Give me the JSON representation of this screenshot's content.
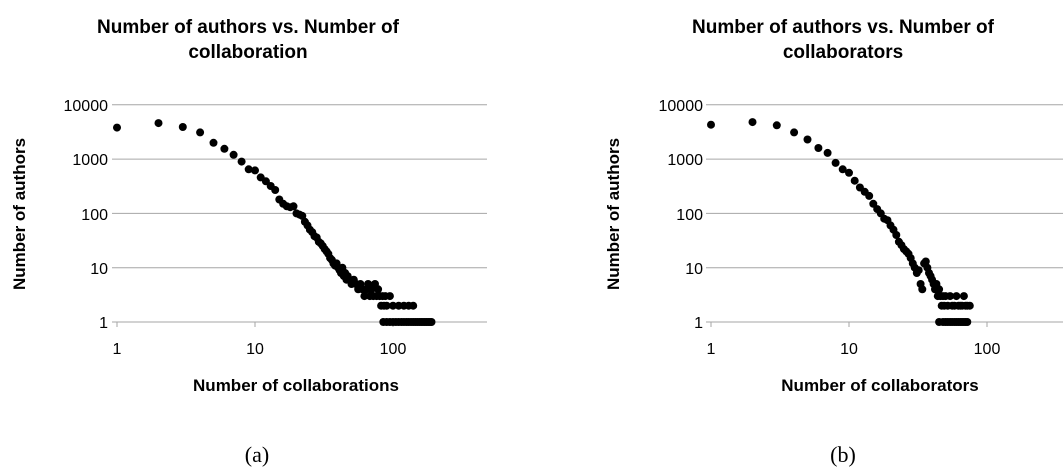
{
  "chart_data": [
    {
      "type": "scatter",
      "title_lines": [
        "Number of authors vs. Number of",
        "collaboration"
      ],
      "xlabel": "Number of collaborations",
      "ylabel": "Number of authors",
      "caption": "(a)",
      "x_scale": "log",
      "y_scale": "log",
      "xlim": [
        1,
        200
      ],
      "ylim": [
        1,
        10000
      ],
      "x_ticks": [
        "1",
        "10",
        "100"
      ],
      "y_ticks": [
        "1",
        "10",
        "100",
        "1000",
        "10000"
      ],
      "grid": "horizontal",
      "legend": "none",
      "points": [
        [
          1,
          3800
        ],
        [
          2,
          4600
        ],
        [
          3,
          3900
        ],
        [
          4,
          3100
        ],
        [
          5,
          2000
        ],
        [
          6,
          1550
        ],
        [
          7,
          1200
        ],
        [
          8,
          900
        ],
        [
          9,
          650
        ],
        [
          10,
          620
        ],
        [
          11,
          460
        ],
        [
          12,
          390
        ],
        [
          13,
          320
        ],
        [
          14,
          270
        ],
        [
          15,
          180
        ],
        [
          16,
          150
        ],
        [
          17,
          135
        ],
        [
          18,
          130
        ],
        [
          19,
          135
        ],
        [
          20,
          100
        ],
        [
          21,
          95
        ],
        [
          22,
          90
        ],
        [
          23,
          70
        ],
        [
          24,
          60
        ],
        [
          25,
          50
        ],
        [
          26,
          45
        ],
        [
          27,
          38
        ],
        [
          28,
          36
        ],
        [
          29,
          30
        ],
        [
          30,
          28
        ],
        [
          31,
          25
        ],
        [
          32,
          22
        ],
        [
          33,
          20
        ],
        [
          34,
          18
        ],
        [
          35,
          15
        ],
        [
          36,
          14
        ],
        [
          37,
          12
        ],
        [
          38,
          11
        ],
        [
          39,
          12
        ],
        [
          40,
          10
        ],
        [
          41,
          9
        ],
        [
          42,
          8
        ],
        [
          43,
          10
        ],
        [
          44,
          7
        ],
        [
          45,
          8
        ],
        [
          46,
          6
        ],
        [
          47,
          7
        ],
        [
          48,
          6
        ],
        [
          50,
          5
        ],
        [
          52,
          6
        ],
        [
          54,
          5
        ],
        [
          56,
          4
        ],
        [
          58,
          5
        ],
        [
          60,
          4
        ],
        [
          62,
          3
        ],
        [
          64,
          4
        ],
        [
          66,
          5
        ],
        [
          68,
          3
        ],
        [
          70,
          4
        ],
        [
          72,
          3
        ],
        [
          74,
          5
        ],
        [
          76,
          3
        ],
        [
          78,
          4
        ],
        [
          80,
          3
        ],
        [
          82,
          2
        ],
        [
          84,
          3
        ],
        [
          86,
          2
        ],
        [
          88,
          3
        ],
        [
          90,
          2
        ],
        [
          95,
          3
        ],
        [
          100,
          2
        ],
        [
          110,
          2
        ],
        [
          120,
          2
        ],
        [
          130,
          2
        ],
        [
          140,
          2
        ],
        [
          85,
          1
        ],
        [
          90,
          1
        ],
        [
          95,
          1
        ],
        [
          100,
          1
        ],
        [
          105,
          1
        ],
        [
          110,
          1
        ],
        [
          115,
          1
        ],
        [
          120,
          1
        ],
        [
          125,
          1
        ],
        [
          130,
          1
        ],
        [
          135,
          1
        ],
        [
          140,
          1
        ],
        [
          145,
          1
        ],
        [
          150,
          1
        ],
        [
          155,
          1
        ],
        [
          160,
          1
        ],
        [
          165,
          1
        ],
        [
          170,
          1
        ],
        [
          175,
          1
        ],
        [
          180,
          1
        ],
        [
          185,
          1
        ],
        [
          190,
          1
        ]
      ]
    },
    {
      "type": "scatter",
      "title_lines": [
        "Number of authors vs. Number of",
        "collaborators"
      ],
      "xlabel": "Number of collaborators",
      "ylabel": "Number of authors",
      "caption": "(b)",
      "x_scale": "log",
      "y_scale": "log",
      "xlim": [
        1,
        200
      ],
      "ylim": [
        1,
        10000
      ],
      "x_ticks": [
        "1",
        "10",
        "100"
      ],
      "y_ticks": [
        "1",
        "10",
        "100",
        "1000",
        "10000"
      ],
      "grid": "horizontal",
      "legend": "none",
      "points": [
        [
          1,
          4300
        ],
        [
          2,
          4800
        ],
        [
          3,
          4200
        ],
        [
          4,
          3100
        ],
        [
          5,
          2300
        ],
        [
          6,
          1600
        ],
        [
          7,
          1300
        ],
        [
          8,
          850
        ],
        [
          9,
          650
        ],
        [
          10,
          560
        ],
        [
          11,
          400
        ],
        [
          12,
          300
        ],
        [
          13,
          250
        ],
        [
          14,
          210
        ],
        [
          15,
          150
        ],
        [
          16,
          120
        ],
        [
          17,
          100
        ],
        [
          18,
          80
        ],
        [
          19,
          75
        ],
        [
          20,
          60
        ],
        [
          21,
          50
        ],
        [
          22,
          40
        ],
        [
          23,
          30
        ],
        [
          24,
          26
        ],
        [
          25,
          22
        ],
        [
          26,
          20
        ],
        [
          27,
          18
        ],
        [
          28,
          15
        ],
        [
          29,
          12
        ],
        [
          30,
          10
        ],
        [
          31,
          8
        ],
        [
          32,
          9
        ],
        [
          33,
          5
        ],
        [
          34,
          4
        ],
        [
          35,
          12
        ],
        [
          36,
          13
        ],
        [
          37,
          10
        ],
        [
          38,
          8
        ],
        [
          39,
          7
        ],
        [
          40,
          6
        ],
        [
          41,
          5
        ],
        [
          42,
          4
        ],
        [
          43,
          5
        ],
        [
          44,
          3
        ],
        [
          45,
          4
        ],
        [
          46,
          3
        ],
        [
          47,
          2
        ],
        [
          48,
          3
        ],
        [
          49,
          2
        ],
        [
          50,
          3
        ],
        [
          52,
          2
        ],
        [
          54,
          3
        ],
        [
          56,
          2
        ],
        [
          58,
          2
        ],
        [
          60,
          3
        ],
        [
          62,
          2
        ],
        [
          64,
          2
        ],
        [
          66,
          2
        ],
        [
          68,
          3
        ],
        [
          70,
          2
        ],
        [
          72,
          2
        ],
        [
          75,
          2
        ],
        [
          45,
          1
        ],
        [
          48,
          1
        ],
        [
          50,
          1
        ],
        [
          52,
          1
        ],
        [
          54,
          1
        ],
        [
          56,
          1
        ],
        [
          58,
          1
        ],
        [
          60,
          1
        ],
        [
          62,
          1
        ],
        [
          64,
          1
        ],
        [
          66,
          1
        ],
        [
          68,
          1
        ],
        [
          70,
          1
        ],
        [
          72,
          1
        ]
      ]
    }
  ]
}
